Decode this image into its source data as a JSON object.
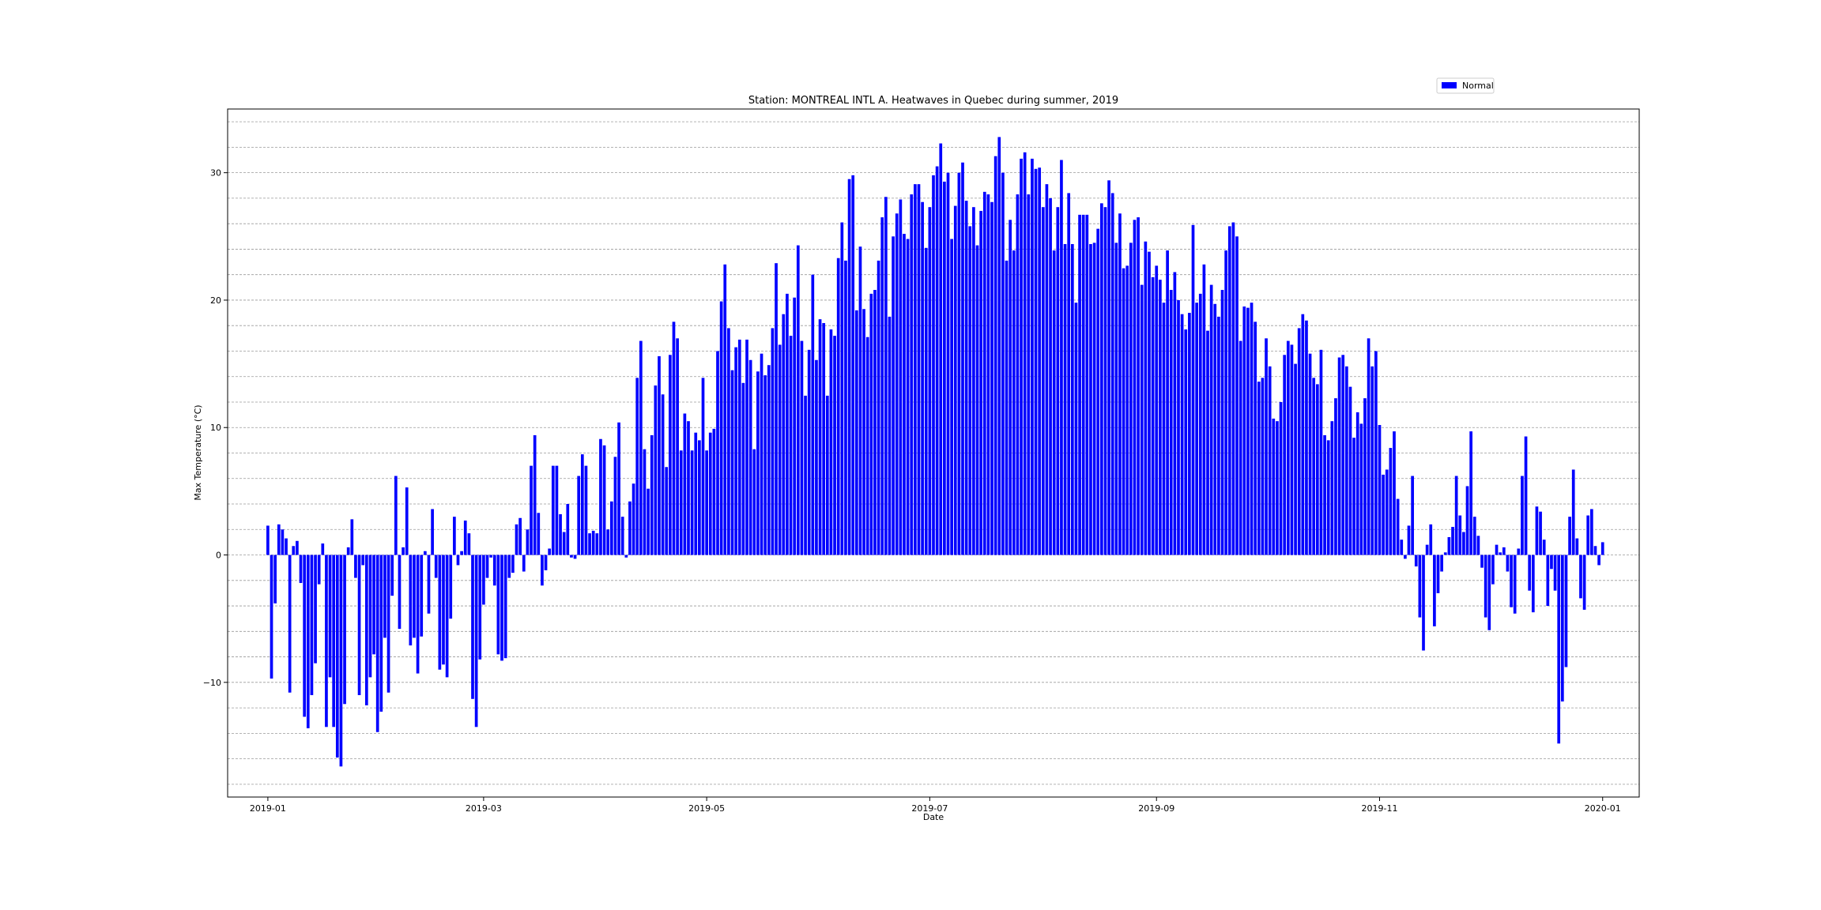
{
  "chart_data": {
    "type": "bar",
    "title": "Station: MONTREAL INTL A. Heatwaves in Quebec during summer, 2019",
    "xlabel": "Date",
    "ylabel": "Max Temperature (°C)",
    "legend": {
      "label": "Normal",
      "placement": "top-right"
    },
    "bar_color": "#0000ff",
    "grid": true,
    "xlim": [
      "2018-12-21",
      "2020-01-11"
    ],
    "ylim": [
      -19,
      35
    ],
    "yticks": [
      -10,
      0,
      10,
      20,
      30
    ],
    "xticks": [
      "2019-01",
      "2019-03",
      "2019-05",
      "2019-07",
      "2019-09",
      "2019-11",
      "2020-01"
    ],
    "series": [
      {
        "name": "Normal",
        "start_date": "2019-01-01",
        "values": [
          2.3,
          -9.7,
          -3.8,
          2.4,
          2.0,
          1.3,
          -10.8,
          0.7,
          1.1,
          -2.2,
          -12.7,
          -13.6,
          -11.0,
          -8.5,
          -2.3,
          0.9,
          -13.5,
          -9.6,
          -13.5,
          -15.9,
          -16.6,
          -11.7,
          0.6,
          2.8,
          -1.8,
          -11.0,
          -0.8,
          -11.8,
          -9.6,
          -7.8,
          -13.9,
          -12.3,
          -6.5,
          -10.8,
          -3.2,
          6.2,
          -5.8,
          0.6,
          5.3,
          -7.1,
          -6.5,
          -9.3,
          -6.4,
          0.3,
          -4.6,
          3.6,
          -1.8,
          -9.0,
          -8.6,
          -9.6,
          -5.0,
          3.0,
          -0.8,
          0.3,
          2.7,
          1.7,
          -11.3,
          -13.5,
          -8.2,
          -3.9,
          -1.8,
          -0.2,
          -2.4,
          -7.8,
          -8.3,
          -8.1,
          -1.8,
          -1.4,
          2.4,
          2.9,
          -1.3,
          2.0,
          7.0,
          9.4,
          3.3,
          -2.4,
          -1.2,
          0.5,
          7.0,
          7.0,
          3.2,
          1.8,
          4.0,
          -0.2,
          -0.3,
          6.2,
          7.9,
          7.0,
          1.7,
          1.9,
          1.7,
          9.1,
          8.6,
          2.0,
          4.2,
          7.7,
          10.4,
          3.0,
          -0.2,
          4.2,
          5.6,
          13.9,
          16.8,
          8.3,
          5.2,
          9.4,
          13.3,
          15.6,
          12.6,
          6.9,
          15.7,
          18.3,
          17.0,
          8.2,
          11.1,
          10.5,
          8.2,
          9.6,
          9.0,
          13.9,
          8.2,
          9.6,
          9.9,
          16.0,
          19.9,
          22.8,
          17.8,
          14.5,
          16.3,
          16.9,
          13.5,
          16.9,
          15.3,
          8.3,
          14.4,
          15.8,
          14.1,
          14.9,
          17.8,
          22.9,
          16.5,
          18.9,
          20.5,
          17.2,
          20.2,
          24.3,
          16.8,
          12.5,
          16.1,
          22.0,
          15.3,
          18.5,
          18.2,
          12.5,
          17.7,
          17.2,
          23.3,
          26.1,
          23.1,
          29.5,
          29.8,
          19.2,
          24.2,
          19.3,
          17.1,
          20.5,
          20.8,
          23.1,
          26.5,
          28.1,
          18.7,
          25.0,
          26.8,
          27.9,
          25.2,
          24.8,
          28.3,
          29.1,
          29.1,
          27.7,
          24.1,
          27.3,
          29.8,
          30.5,
          32.3,
          29.3,
          30.0,
          24.8,
          27.4,
          30.0,
          30.8,
          27.8,
          25.8,
          27.3,
          24.3,
          27.0,
          28.5,
          28.3,
          27.7,
          31.3,
          32.8,
          30.0,
          23.1,
          26.3,
          23.9,
          28.3,
          31.1,
          31.6,
          28.3,
          31.1,
          30.3,
          30.4,
          27.3,
          29.1,
          28.0,
          23.9,
          27.3,
          31.0,
          24.4,
          28.4,
          24.4,
          19.8,
          26.7,
          26.7,
          26.7,
          24.4,
          24.5,
          25.6,
          27.6,
          27.3,
          29.4,
          28.4,
          24.5,
          26.8,
          22.5,
          22.7,
          24.5,
          26.3,
          26.5,
          21.2,
          24.6,
          23.8,
          21.8,
          22.7,
          21.6,
          19.8,
          23.9,
          20.8,
          22.2,
          20.0,
          18.9,
          17.7,
          19.0,
          25.9,
          19.8,
          20.5,
          22.8,
          17.6,
          21.2,
          19.7,
          18.7,
          20.8,
          23.9,
          25.8,
          26.1,
          25.0,
          16.8,
          19.5,
          19.4,
          19.8,
          18.3,
          13.6,
          13.9,
          17.0,
          14.8,
          10.7,
          10.5,
          12.0,
          15.7,
          16.8,
          16.5,
          15.0,
          17.8,
          18.9,
          18.4,
          15.8,
          13.9,
          13.4,
          16.1,
          9.4,
          9.0,
          10.5,
          12.3,
          15.5,
          15.7,
          14.8,
          13.2,
          9.2,
          11.2,
          10.3,
          12.3,
          17.0,
          14.8,
          16.0,
          10.2,
          6.3,
          6.7,
          8.4,
          9.7,
          4.4,
          1.2,
          -0.3,
          2.3,
          6.2,
          -0.9,
          -4.9,
          -7.5,
          0.8,
          2.4,
          -5.6,
          -3.0,
          -1.3,
          0.2,
          1.4,
          2.2,
          6.2,
          3.1,
          1.8,
          5.4,
          9.7,
          3.0,
          1.5,
          -1.0,
          -4.9,
          -5.9,
          -2.3,
          0.8,
          0.2,
          0.6,
          -1.3,
          -4.1,
          -4.6,
          0.5,
          6.2,
          9.3,
          -2.8,
          -4.5,
          3.8,
          3.4,
          1.2,
          -4.0,
          -1.1,
          -2.8,
          -14.8,
          -11.5,
          -8.8,
          3.0,
          6.7,
          1.3,
          -3.4,
          -4.3,
          3.1,
          3.6,
          0.7,
          -0.8,
          1.0
        ]
      }
    ]
  }
}
